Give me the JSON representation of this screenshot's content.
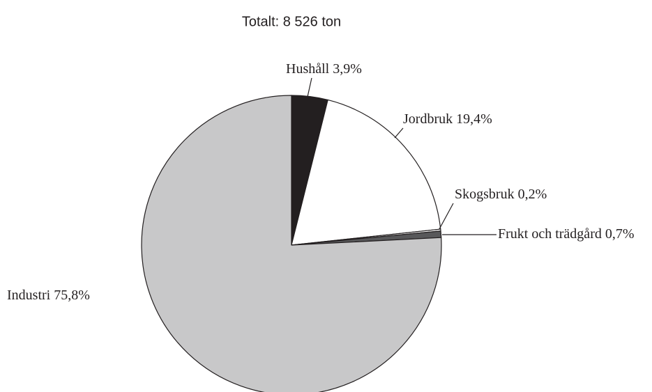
{
  "chart_data": {
    "type": "pie",
    "title": "Totalt: 8 526 ton",
    "categories": [
      "Hushåll",
      "Jordbruk",
      "Skogsbruk",
      "Frukt och trädgård",
      "Industri"
    ],
    "values": [
      3.9,
      19.4,
      0.2,
      0.7,
      75.8
    ],
    "value_labels": [
      "3,9%",
      "19,4%",
      "0,2%",
      "0,7%",
      "75,8%"
    ],
    "colors": [
      "#231f20",
      "#ffffff",
      "#ffffff",
      "#58585a",
      "#c8c8c9"
    ]
  }
}
